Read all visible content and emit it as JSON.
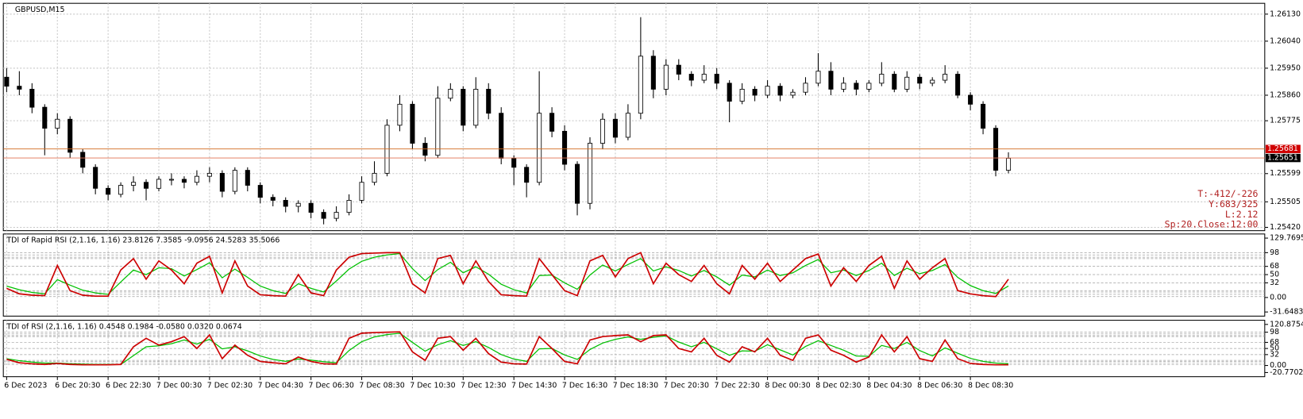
{
  "chart_data": [
    {
      "type": "candlestick",
      "title": "GBPUSD,M15",
      "categories": [
        "6 Dec 2023",
        null,
        null,
        null,
        "6 Dec 20:30",
        null,
        null,
        null,
        "6 Dec 22:30",
        null,
        null,
        null,
        "7 Dec 00:30",
        null,
        null,
        null,
        "7 Dec 02:30",
        null,
        null,
        null,
        "7 Dec 04:30",
        null,
        null,
        null,
        "7 Dec 06:30",
        null,
        null,
        null,
        "7 Dec 08:30",
        null,
        null,
        null,
        "7 Dec 10:30",
        null,
        null,
        null,
        "7 Dec 12:30",
        null,
        null,
        null,
        "7 Dec 14:30",
        null,
        null,
        null,
        "7 Dec 16:30",
        null,
        null,
        null,
        "7 Dec 18:30",
        null,
        null,
        null,
        "7 Dec 20:30",
        null,
        null,
        null,
        "7 Dec 22:30",
        null,
        null,
        null,
        "8 Dec 00:30",
        null,
        null,
        null,
        "8 Dec 02:30",
        null,
        null,
        null,
        "8 Dec 04:30",
        null,
        null,
        null,
        "8 Dec 06:30",
        null,
        null,
        null,
        "8 Dec 08:30",
        null,
        null,
        null
      ],
      "open": [
        1.2592,
        1.2589,
        1.2588,
        1.2582,
        1.2575,
        1.2578,
        1.2567,
        1.2562,
        1.2555,
        1.2553,
        1.2556,
        1.2557,
        1.2555,
        1.2558,
        1.2558,
        1.2557,
        1.2559,
        1.256,
        1.2554,
        1.2561,
        1.2556,
        1.2552,
        1.2551,
        1.2549,
        1.255,
        1.2547,
        1.2545,
        1.2547,
        1.2551,
        1.2557,
        1.256,
        1.2576,
        1.2583,
        1.257,
        1.2566,
        1.2585,
        1.2588,
        1.2576,
        1.2588,
        1.258,
        1.2565,
        1.2562,
        1.2557,
        1.258,
        1.2574,
        1.2563,
        1.255,
        1.257,
        1.2578,
        1.2572,
        1.258,
        1.2599,
        1.2588,
        1.2596,
        1.2593,
        1.2591,
        1.2593,
        1.259,
        1.2584,
        1.2588,
        1.2586,
        1.2589,
        1.2586,
        1.2587,
        1.259,
        1.2594,
        1.2588,
        1.259,
        1.2588,
        1.259,
        1.2593,
        1.2588,
        1.2592,
        1.259,
        1.2591,
        1.2593,
        1.2586,
        1.2583,
        1.2575,
        1.2561
      ],
      "high": [
        1.2595,
        1.2594,
        1.259,
        1.2583,
        1.258,
        1.2579,
        1.2568,
        1.2563,
        1.2556,
        1.2557,
        1.2559,
        1.2558,
        1.2559,
        1.256,
        1.2559,
        1.2561,
        1.2562,
        1.2561,
        1.2562,
        1.2562,
        1.2557,
        1.2553,
        1.2552,
        1.2551,
        1.2551,
        1.2548,
        1.2549,
        1.2553,
        1.2559,
        1.2564,
        1.2578,
        1.2586,
        1.2584,
        1.2572,
        1.2589,
        1.259,
        1.2589,
        1.2592,
        1.259,
        1.2582,
        1.2566,
        1.2563,
        1.2594,
        1.2582,
        1.2576,
        1.2564,
        1.2572,
        1.258,
        1.258,
        1.2583,
        1.2612,
        1.2601,
        1.2598,
        1.2598,
        1.2594,
        1.2596,
        1.2595,
        1.2591,
        1.259,
        1.2589,
        1.2591,
        1.259,
        1.2588,
        1.2592,
        1.26,
        1.2597,
        1.2592,
        1.2591,
        1.2591,
        1.2597,
        1.2594,
        1.2594,
        1.2593,
        1.2592,
        1.2596,
        1.2594,
        1.2587,
        1.2584,
        1.2576,
        1.2567
      ],
      "low": [
        1.2587,
        1.2586,
        1.258,
        1.2566,
        1.2573,
        1.2565,
        1.256,
        1.2553,
        1.2551,
        1.2552,
        1.2554,
        1.2551,
        1.2554,
        1.2556,
        1.2555,
        1.2556,
        1.2557,
        1.2552,
        1.2553,
        1.2554,
        1.255,
        1.2549,
        1.2547,
        1.2547,
        1.2545,
        1.2543,
        1.2544,
        1.2546,
        1.255,
        1.2556,
        1.2559,
        1.2574,
        1.2568,
        1.2564,
        1.2565,
        1.2584,
        1.2574,
        1.2575,
        1.2578,
        1.2563,
        1.2556,
        1.2552,
        1.2556,
        1.2572,
        1.2561,
        1.2546,
        1.2548,
        1.2568,
        1.257,
        1.2571,
        1.2578,
        1.2585,
        1.2586,
        1.2591,
        1.2589,
        1.259,
        1.2588,
        1.2577,
        1.2583,
        1.2584,
        1.2585,
        1.2584,
        1.2585,
        1.2586,
        1.2589,
        1.2586,
        1.2587,
        1.2586,
        1.2587,
        1.2589,
        1.2587,
        1.2587,
        1.2588,
        1.2589,
        1.259,
        1.2585,
        1.2581,
        1.2573,
        1.2559,
        1.256
      ],
      "close": [
        1.2589,
        1.2588,
        1.2582,
        1.2575,
        1.2578,
        1.2567,
        1.2562,
        1.2555,
        1.2553,
        1.2556,
        1.2557,
        1.2555,
        1.2558,
        1.2558,
        1.2557,
        1.2559,
        1.256,
        1.2554,
        1.2561,
        1.2556,
        1.2552,
        1.2551,
        1.2549,
        1.255,
        1.2547,
        1.2545,
        1.2547,
        1.2551,
        1.2557,
        1.256,
        1.2576,
        1.2583,
        1.257,
        1.2566,
        1.2585,
        1.2588,
        1.2576,
        1.2588,
        1.258,
        1.2565,
        1.2562,
        1.2557,
        1.258,
        1.2574,
        1.2563,
        1.255,
        1.257,
        1.2578,
        1.2572,
        1.258,
        1.2599,
        1.2588,
        1.2596,
        1.2593,
        1.2591,
        1.2593,
        1.259,
        1.2584,
        1.2588,
        1.2586,
        1.2589,
        1.2586,
        1.2587,
        1.259,
        1.2594,
        1.2588,
        1.259,
        1.2588,
        1.259,
        1.2593,
        1.2588,
        1.2592,
        1.259,
        1.2591,
        1.2593,
        1.2586,
        1.2583,
        1.2575,
        1.2561,
        1.2565
      ],
      "ylim": [
        1.25409,
        1.26166
      ],
      "yticks": [
        {
          "value": 1.2613,
          "label": "1.26130"
        },
        {
          "value": 1.2604,
          "label": "1.26040"
        },
        {
          "value": 1.2595,
          "label": "1.25950"
        },
        {
          "value": 1.2586,
          "label": "1.25860"
        },
        1.25775,
        1.25599,
        1.25505,
        {
          "value": 1.2542,
          "label": "1.25420"
        }
      ],
      "grid": true,
      "ask": 1.25681,
      "bid": 1.25651,
      "info": [
        "T:-412/-226",
        "Y:683/325",
        "L:2.12",
        "Sp:20.Close:12:00"
      ]
    },
    {
      "type": "line",
      "title": "TDI of Rapid RSI  (2,1.16, 1.16) 23.8126 7.3585 -9.0956 24.5283 35.5066",
      "ylim": [
        -40.7,
        138.8
      ],
      "yticks": [
        129.7695,
        98,
        68,
        50,
        32,
        {
          "value": 0,
          "label": "0.00"
        },
        -31.6483
      ],
      "levels": [
        98,
        93,
        88,
        85,
        68,
        50,
        32,
        15,
        12,
        7,
        2
      ],
      "series": [
        {
          "color": "#00c000",
          "values": [
            25,
            17,
            11,
            8,
            39,
            27,
            16,
            10,
            7,
            34,
            60,
            50,
            65,
            63,
            47,
            61,
            76,
            43,
            62,
            44,
            25,
            15,
            9,
            30,
            20,
            12,
            36,
            62,
            79,
            88,
            93,
            96,
            63,
            37,
            61,
            77,
            54,
            67,
            51,
            29,
            17,
            10,
            48,
            49,
            32,
            18,
            49,
            71,
            58,
            72,
            85,
            58,
            67,
            59,
            47,
            59,
            45,
            27,
            49,
            45,
            60,
            48,
            54,
            70,
            83,
            54,
            60,
            48,
            59,
            75,
            48,
            64,
            52,
            59,
            72,
            44,
            26,
            15,
            9,
            25
          ]
        },
        {
          "color": "#cc0000",
          "values": [
            20,
            8,
            5,
            4,
            70,
            15,
            5,
            3,
            3,
            60,
            85,
            40,
            80,
            60,
            30,
            75,
            90,
            10,
            80,
            25,
            6,
            4,
            3,
            50,
            10,
            4,
            60,
            88,
            96,
            97,
            98,
            98,
            30,
            10,
            85,
            92,
            30,
            80,
            35,
            6,
            4,
            3,
            85,
            50,
            15,
            4,
            80,
            92,
            45,
            85,
            98,
            30,
            75,
            50,
            35,
            70,
            30,
            8,
            70,
            40,
            75,
            35,
            60,
            85,
            95,
            25,
            65,
            35,
            70,
            90,
            20,
            80,
            40,
            65,
            85,
            15,
            8,
            4,
            2,
            40
          ]
        }
      ],
      "grid": true
    },
    {
      "type": "line",
      "title": "TDI of RSI  (2,1.16, 1.16) 0.4548 0.1984 -0.0580 0.0320 0.0674",
      "ylim": [
        -33.0,
        133.1
      ],
      "yticks": [
        120.8754,
        98,
        68,
        50,
        32,
        {
          "value": 0,
          "label": "0.00"
        },
        -20.7702
      ],
      "levels": [
        98,
        93,
        88,
        85,
        68,
        50,
        32,
        15,
        12,
        7,
        2
      ],
      "series": [
        {
          "color": "#00c000",
          "values": [
            20,
            14,
            10,
            7,
            7,
            5,
            4,
            3,
            3,
            3,
            29,
            55,
            58,
            64,
            75,
            63,
            77,
            49,
            55,
            43,
            28,
            18,
            12,
            19,
            16,
            11,
            8,
            44,
            70,
            84,
            91,
            95,
            68,
            42,
            61,
            73,
            59,
            70,
            53,
            32,
            19,
            12,
            49,
            50,
            31,
            18,
            47,
            66,
            77,
            84,
            77,
            83,
            87,
            69,
            55,
            68,
            49,
            30,
            43,
            42,
            61,
            46,
            31,
            56,
            73,
            59,
            45,
            28,
            27,
            59,
            50,
            68,
            44,
            28,
            52,
            36,
            21,
            12,
            7,
            5
          ]
        },
        {
          "color": "#cc0000",
          "values": [
            18,
            8,
            5,
            3,
            6,
            3,
            2,
            2,
            2,
            3,
            55,
            80,
            60,
            70,
            85,
            50,
            90,
            20,
            60,
            30,
            12,
            8,
            5,
            25,
            12,
            5,
            4,
            80,
            95,
            97,
            98,
            99,
            40,
            15,
            80,
            85,
            45,
            80,
            35,
            10,
            5,
            4,
            85,
            50,
            12,
            5,
            75,
            85,
            88,
            90,
            70,
            88,
            90,
            50,
            40,
            80,
            30,
            10,
            55,
            40,
            80,
            30,
            15,
            80,
            90,
            45,
            30,
            10,
            25,
            90,
            40,
            85,
            20,
            12,
            75,
            20,
            6,
            3,
            2,
            2
          ]
        }
      ],
      "grid": true
    }
  ]
}
